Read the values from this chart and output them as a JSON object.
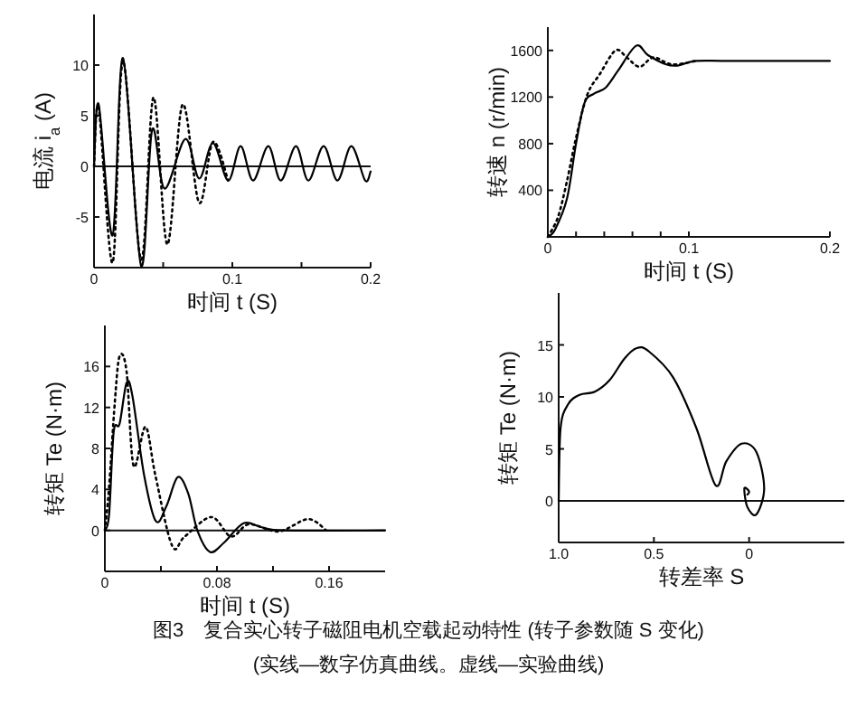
{
  "chart_data": [
    {
      "type": "line",
      "xlabel": "时间 t (S)",
      "ylabel": "电流 i$_{a}$ (A)",
      "xlim": [
        0,
        0.2
      ],
      "ylim": [
        -10,
        15
      ],
      "xticks": [
        0,
        {
          "value": 0.05,
          "label": null
        },
        0.1,
        {
          "value": 0.15,
          "label": null
        },
        0.2
      ],
      "yticks": [
        -5,
        0,
        5,
        10
      ],
      "ref_lines": [
        {
          "axis": "y",
          "value": 0
        }
      ],
      "series": [
        {
          "color": "#000000",
          "line_style": "solid",
          "x": [
            0,
            0.0034,
            0.0135,
            0.021,
            0.034,
            0.042,
            0.051,
            0.066,
            0.076,
            0.086,
            0.097,
            0.106,
            0.115,
            0.126,
            0.135,
            0.146,
            0.155,
            0.166,
            0.176,
            0.186,
            0.196,
            0.2
          ],
          "values": [
            0,
            6.1,
            -6.8,
            10.7,
            -9.8,
            3.6,
            -2.2,
            2.7,
            -1.2,
            2.3,
            -1.4,
            2,
            -1.4,
            2,
            -1.4,
            2,
            -1.4,
            2,
            -1.4,
            2,
            -1.4,
            -0.5
          ]
        },
        {
          "color": "#000000",
          "line_style": "dotted",
          "x": [
            0,
            0.0034,
            0.0135,
            0.021,
            0.034,
            0.043,
            0.053,
            0.064,
            0.076,
            0.086,
            0.097
          ],
          "values": [
            0,
            5.7,
            -9.5,
            10.4,
            -9.2,
            6.8,
            -7.7,
            6.1,
            -3.6,
            2.4,
            -1.4
          ]
        }
      ]
    },
    {
      "type": "line",
      "xlabel": "时间 t (S)",
      "ylabel": "转速 n (r/min)",
      "xlim": [
        0,
        0.2
      ],
      "ylim": [
        0,
        1800
      ],
      "xticks": [
        0,
        {
          "value": 0.02,
          "label": null
        },
        {
          "value": 0.04,
          "label": null
        },
        {
          "value": 0.06,
          "label": null
        },
        {
          "value": 0.08,
          "label": null
        },
        0.1,
        0.2
      ],
      "yticks": [
        400,
        800,
        1200,
        1600
      ],
      "series": [
        {
          "color": "#000000",
          "line_style": "solid",
          "x": [
            0,
            0.005,
            0.0136,
            0.02,
            0.026,
            0.033,
            0.041,
            0.05,
            0.0626,
            0.071,
            0.084,
            0.092,
            0.105,
            0.13,
            0.2
          ],
          "values": [
            0,
            60,
            330,
            800,
            1150,
            1230,
            1280,
            1430,
            1640,
            1560,
            1480,
            1470,
            1510,
            1510,
            1510
          ]
        },
        {
          "color": "#000000",
          "line_style": "dotted",
          "x": [
            0,
            0.0072,
            0.0136,
            0.02,
            0.028,
            0.037,
            0.048,
            0.056,
            0.065,
            0.075,
            0.088,
            0.105
          ],
          "values": [
            0,
            170,
            480,
            850,
            1220,
            1400,
            1600,
            1540,
            1460,
            1540,
            1480,
            1510
          ]
        }
      ]
    },
    {
      "type": "line",
      "xlabel": "时间 t (S)",
      "ylabel": "转矩 Te (N·m)",
      "xlim": [
        0,
        0.2
      ],
      "ylim": [
        -4,
        20
      ],
      "xticks": [
        0,
        {
          "value": 0.04,
          "label": null
        },
        0.08,
        {
          "value": 0.12,
          "label": null
        },
        0.16
      ],
      "yticks": [
        0,
        4,
        8,
        12,
        16
      ],
      "ref_lines": [
        {
          "axis": "y",
          "value": 0
        }
      ],
      "series": [
        {
          "color": "#000000",
          "line_style": "solid",
          "x": [
            0,
            0.003,
            0.0063,
            0.0105,
            0.0155,
            0.0197,
            0.028,
            0.0364,
            0.044,
            0.052,
            0.0595,
            0.066,
            0.075,
            0.085,
            0.099,
            0.112,
            0.129,
            0.2
          ],
          "values": [
            0,
            1.5,
            9.6,
            10.4,
            14.4,
            13.1,
            5.4,
            0.9,
            2.4,
            5.2,
            3.6,
            0,
            -2.1,
            -1.2,
            0.7,
            0.3,
            0,
            0
          ]
        },
        {
          "color": "#000000",
          "line_style": "dotted",
          "x": [
            0,
            0.003,
            0.0071,
            0.0105,
            0.0155,
            0.0205,
            0.029,
            0.036,
            0.048,
            0.057,
            0.076,
            0.09,
            0.103,
            0.124,
            0.145,
            0.158
          ],
          "values": [
            0,
            4.2,
            12.5,
            17,
            15.5,
            6.3,
            10.1,
            5.4,
            -1.5,
            -0.6,
            1.3,
            -0.6,
            0.6,
            -0.1,
            1.1,
            0
          ]
        }
      ]
    },
    {
      "type": "line",
      "xlabel": "转差率 S",
      "ylabel": "转矩 Te (N·m)",
      "xlim": [
        1,
        -0.5
      ],
      "ylim": [
        -4,
        20
      ],
      "xticks": [
        {
          "value": 1,
          "label": "1.0"
        },
        0.5,
        0
      ],
      "yticks": [
        0,
        5,
        10,
        15
      ],
      "ref_lines": [
        {
          "axis": "y",
          "value": 0
        }
      ],
      "annotations": [
        "图3　复合实心转子磁阻电机空载起动特性 (转子参数随 S 变化)",
        "(实线—数字仿真曲线。虚线—实验曲线)"
      ],
      "series": [
        {
          "color": "#000000",
          "line_style": "solid",
          "x": [
            1,
            0.99,
            0.95,
            0.89,
            0.81,
            0.733,
            0.654,
            0.59,
            0.528,
            0.4,
            0.277,
            0.176,
            0.12,
            0.04,
            -0.038,
            -0.079,
            -0.038,
            0.009,
            0.025,
            0,
            0.009
          ],
          "values": [
            0,
            7,
            9.3,
            10.2,
            10.5,
            11.6,
            13.7,
            14.7,
            14.4,
            11.9,
            7,
            1.5,
            3.8,
            5.5,
            4.7,
            1.2,
            -1.3,
            -0.6,
            1.2,
            0.9,
            0.6
          ]
        }
      ]
    }
  ]
}
